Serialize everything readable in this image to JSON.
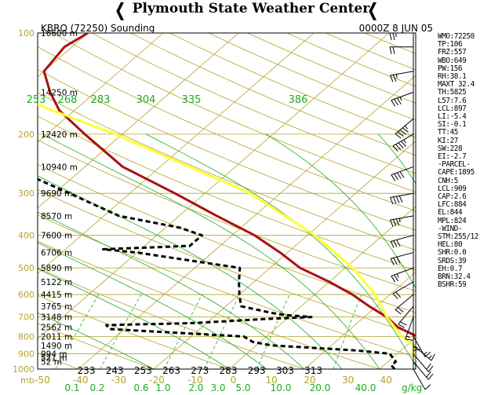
{
  "header": {
    "title": "Plymouth State Weather Center"
  },
  "chart_data": {
    "type": "line",
    "station_label": "KBRO (72250) Sounding",
    "time_label": "0000Z  8 JUN 05",
    "pressure_levels": [
      100,
      200,
      300,
      400,
      500,
      600,
      700,
      800,
      900,
      1000
    ],
    "height_labels": [
      {
        "p": 100,
        "label": "16600 m"
      },
      {
        "p": 150,
        "label": "14250 m"
      },
      {
        "p": 200,
        "label": "12420 m"
      },
      {
        "p": 250,
        "label": "10940 m"
      },
      {
        "p": 300,
        "label": "9690 m"
      },
      {
        "p": 350,
        "label": "8570 m"
      },
      {
        "p": 400,
        "label": "7600 m"
      },
      {
        "p": 450,
        "label": "6706 m"
      },
      {
        "p": 500,
        "label": "5890 m"
      },
      {
        "p": 550,
        "label": "5122 m"
      },
      {
        "p": 600,
        "label": "4415 m"
      },
      {
        "p": 650,
        "label": "3765 m"
      },
      {
        "p": 700,
        "label": "3148 m"
      },
      {
        "p": 750,
        "label": "2562 m"
      },
      {
        "p": 800,
        "label": "2011 m"
      },
      {
        "p": 850,
        "label": "1490 m"
      },
      {
        "p": 900,
        "label": "994 m"
      },
      {
        "p": 925,
        "label": "521 m"
      },
      {
        "p": 950,
        "label": "52 m"
      }
    ],
    "temperature_ticks": [
      -50,
      -40,
      -30,
      -20,
      -10,
      0,
      10,
      20,
      30,
      40
    ],
    "x_unit_label": "mb",
    "theta_labels_top": [
      "253",
      "268",
      "283",
      "304",
      "335",
      "386"
    ],
    "theta_labels_bottom": [
      "233",
      "243",
      "253",
      "263",
      "273",
      "283",
      "293",
      "303",
      "313"
    ],
    "mixing_ratio_labels": [
      "0.1",
      "0.2",
      "0.6",
      "1.0",
      "2.0",
      "3.0",
      "5.0",
      "10.0",
      "20.0",
      "40.0"
    ],
    "mixing_ratio_unit": "g/kg",
    "isotherms": [
      -110,
      -100,
      -90,
      -80,
      -70,
      -60,
      -50,
      -40,
      -30,
      -20,
      -10,
      0,
      10,
      20,
      30,
      40,
      50
    ],
    "dry_adiabats": [
      -30,
      -20,
      -10,
      0,
      10,
      20,
      30,
      40,
      50,
      60,
      70,
      80,
      90,
      100,
      110,
      120,
      130,
      140,
      150,
      160,
      170,
      180,
      190
    ],
    "moist_adiabats": [
      -10,
      0,
      5,
      10,
      15,
      20,
      25,
      30,
      35
    ],
    "mixing_ratio_lines": [
      0.1,
      0.2,
      0.6,
      1.0,
      2.0,
      3.0,
      5.0,
      10.0,
      20.0,
      40.0
    ],
    "series": [
      {
        "name": "Temperature",
        "color": "#aa1111",
        "points": [
          [
            1000,
            30
          ],
          [
            975,
            29
          ],
          [
            950,
            28
          ],
          [
            925,
            26
          ],
          [
            900,
            24
          ],
          [
            850,
            23
          ],
          [
            800,
            20
          ],
          [
            750,
            16
          ],
          [
            700,
            13
          ],
          [
            650,
            9
          ],
          [
            600,
            5
          ],
          [
            550,
            0
          ],
          [
            500,
            -6
          ],
          [
            450,
            -11
          ],
          [
            400,
            -17
          ],
          [
            350,
            -25
          ],
          [
            300,
            -34
          ],
          [
            250,
            -45
          ],
          [
            200,
            -55
          ],
          [
            170,
            -62
          ],
          [
            150,
            -66
          ],
          [
            130,
            -70
          ],
          [
            110,
            -71
          ],
          [
            100,
            -70
          ]
        ]
      },
      {
        "name": "Dewpoint",
        "color": "#000000",
        "points": [
          [
            1000,
            22
          ],
          [
            975,
            21
          ],
          [
            950,
            21
          ],
          [
            925,
            20
          ],
          [
            900,
            19
          ],
          [
            880,
            14
          ],
          [
            850,
            2
          ],
          [
            830,
            -1
          ],
          [
            800,
            -3
          ],
          [
            760,
            -22
          ],
          [
            740,
            -23
          ],
          [
            730,
            -12
          ],
          [
            710,
            -3
          ],
          [
            700,
            3
          ],
          [
            690,
            -1
          ],
          [
            680,
            -3
          ],
          [
            650,
            -8
          ],
          [
            600,
            -10
          ],
          [
            550,
            -12
          ],
          [
            500,
            -14
          ],
          [
            450,
            -30
          ],
          [
            440,
            -35
          ],
          [
            430,
            -24
          ],
          [
            400,
            -24
          ],
          [
            380,
            -28
          ],
          [
            350,
            -38
          ],
          [
            300,
            -48
          ],
          [
            250,
            -60
          ],
          [
            200,
            -70
          ],
          [
            170,
            -77
          ],
          [
            150,
            -83
          ],
          [
            130,
            -91
          ],
          [
            115,
            -95
          ],
          [
            100,
            -97
          ]
        ]
      },
      {
        "name": "Parcel",
        "color": "#ffff33",
        "points": [
          [
            1000,
            30
          ],
          [
            950,
            25
          ],
          [
            900,
            22
          ],
          [
            850,
            21
          ],
          [
            800,
            18
          ],
          [
            700,
            13
          ],
          [
            600,
            8
          ],
          [
            500,
            1
          ],
          [
            400,
            -9
          ],
          [
            300,
            -24
          ],
          [
            200,
            -51
          ],
          [
            150,
            -72
          ],
          [
            120,
            -88
          ],
          [
            110,
            -95
          ]
        ]
      }
    ],
    "wind_barbs": [
      {
        "p": 1000,
        "dir": 150,
        "spd": 10
      },
      {
        "p": 950,
        "dir": 140,
        "spd": 20
      },
      {
        "p": 900,
        "dir": 140,
        "spd": 20
      },
      {
        "p": 850,
        "dir": 130,
        "spd": 15
      },
      {
        "p": 800,
        "dir": 150,
        "spd": 15
      },
      {
        "p": 750,
        "dir": 180,
        "spd": 15
      },
      {
        "p": 700,
        "dir": 200,
        "spd": 15
      },
      {
        "p": 650,
        "dir": 220,
        "spd": 20
      },
      {
        "p": 600,
        "dir": 230,
        "spd": 20
      },
      {
        "p": 550,
        "dir": 240,
        "spd": 20
      },
      {
        "p": 500,
        "dir": 250,
        "spd": 25
      },
      {
        "p": 450,
        "dir": 255,
        "spd": 30
      },
      {
        "p": 400,
        "dir": 255,
        "spd": 30
      },
      {
        "p": 350,
        "dir": 260,
        "spd": 35
      },
      {
        "p": 300,
        "dir": 260,
        "spd": 40
      },
      {
        "p": 250,
        "dir": 250,
        "spd": 40
      },
      {
        "p": 200,
        "dir": 240,
        "spd": 45
      },
      {
        "p": 180,
        "dir": 230,
        "spd": 45
      },
      {
        "p": 150,
        "dir": 250,
        "spd": 35
      },
      {
        "p": 130,
        "dir": 260,
        "spd": 25
      },
      {
        "p": 110,
        "dir": 270,
        "spd": 20
      },
      {
        "p": 100,
        "dir": 270,
        "spd": 25
      }
    ]
  },
  "indices": [
    "WMO:72250",
    "TP:106",
    "FRZ:557",
    "WBO:649",
    "PW:156",
    "RH:38.1",
    "MAXT 32.4",
    "TH:5825",
    "L57:7.6",
    "LCL:897",
    "LI:-5.4",
    "SI:-0.1",
    "TT:45",
    "KI:27",
    "SW:228",
    "EI:-2.7",
    "-PARCEL-",
    "CAPE:1895",
    "CNH:5",
    "LCL:909",
    "CAP:2.6",
    "LFC:884",
    "EL:844",
    "MPL:824",
    "-WIND-",
    "STM:255/12",
    "HEL:80",
    "SHR:0.0",
    "SRDS:39",
    "EH:0.7",
    "BRN:32.4",
    "BSHR:59"
  ]
}
